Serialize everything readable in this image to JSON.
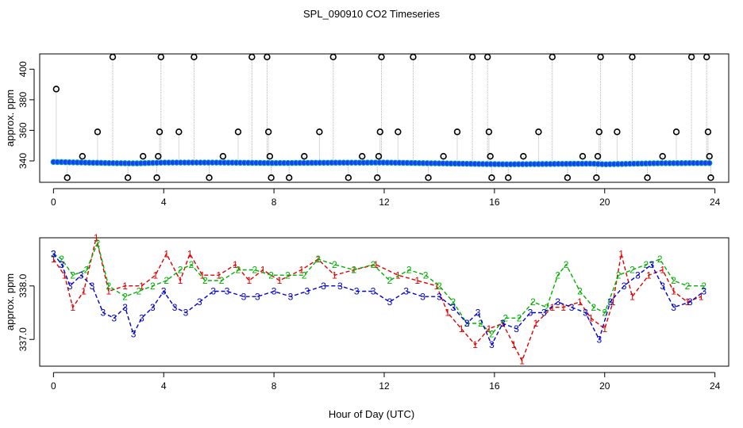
{
  "title": "SPL_090910  CO2 Timeseries",
  "xlabel": "Hour of Day (UTC)",
  "chart_data": [
    {
      "type": "scatter",
      "title": "SPL_090910  CO2 Timeseries",
      "ylabel": "approx. ppm",
      "xlim": [
        -0.5,
        24.5
      ],
      "ylim": [
        326,
        410
      ],
      "xticks": [
        0,
        4,
        8,
        12,
        16,
        20,
        24
      ],
      "xtick_labels": [
        "0",
        "4",
        "8",
        "12",
        "16",
        "20",
        "24"
      ],
      "yticks": [
        340,
        360,
        380,
        400
      ],
      "ytick_labels": [
        "340",
        "360",
        "380",
        "400"
      ],
      "baseline": [
        [
          0.0,
          339.3
        ],
        [
          2.0,
          338.6
        ],
        [
          3.0,
          338.4
        ],
        [
          4.0,
          338.9
        ],
        [
          6.0,
          338.9
        ],
        [
          8.0,
          338.6
        ],
        [
          10.0,
          338.8
        ],
        [
          12.0,
          338.9
        ],
        [
          14.0,
          338.4
        ],
        [
          15.5,
          338.0
        ],
        [
          16.5,
          337.8
        ],
        [
          18.0,
          338.0
        ],
        [
          19.5,
          338.2
        ],
        [
          20.0,
          337.8
        ],
        [
          22.0,
          338.5
        ],
        [
          23.8,
          338.6
        ]
      ],
      "outliers": [
        {
          "x": 0.1,
          "y": 387
        },
        {
          "x": 0.5,
          "y": 329
        },
        {
          "x": 1.05,
          "y": 343
        },
        {
          "x": 1.6,
          "y": 359
        },
        {
          "x": 2.15,
          "y": 408
        },
        {
          "x": 2.7,
          "y": 329
        },
        {
          "x": 3.25,
          "y": 343
        },
        {
          "x": 3.75,
          "y": 329
        },
        {
          "x": 3.8,
          "y": 343
        },
        {
          "x": 3.85,
          "y": 359
        },
        {
          "x": 3.9,
          "y": 408
        },
        {
          "x": 4.55,
          "y": 359
        },
        {
          "x": 5.1,
          "y": 408
        },
        {
          "x": 5.65,
          "y": 329
        },
        {
          "x": 6.15,
          "y": 343
        },
        {
          "x": 6.7,
          "y": 359
        },
        {
          "x": 7.2,
          "y": 408
        },
        {
          "x": 7.75,
          "y": 408
        },
        {
          "x": 7.8,
          "y": 359
        },
        {
          "x": 7.85,
          "y": 343
        },
        {
          "x": 7.9,
          "y": 329
        },
        {
          "x": 8.55,
          "y": 329
        },
        {
          "x": 9.1,
          "y": 343
        },
        {
          "x": 9.65,
          "y": 359
        },
        {
          "x": 10.15,
          "y": 408
        },
        {
          "x": 10.7,
          "y": 329
        },
        {
          "x": 11.2,
          "y": 343
        },
        {
          "x": 11.75,
          "y": 329
        },
        {
          "x": 11.8,
          "y": 343
        },
        {
          "x": 11.85,
          "y": 359
        },
        {
          "x": 11.9,
          "y": 408
        },
        {
          "x": 12.5,
          "y": 359
        },
        {
          "x": 13.05,
          "y": 408
        },
        {
          "x": 13.6,
          "y": 329
        },
        {
          "x": 14.15,
          "y": 343
        },
        {
          "x": 14.65,
          "y": 359
        },
        {
          "x": 15.2,
          "y": 408
        },
        {
          "x": 15.75,
          "y": 408
        },
        {
          "x": 15.8,
          "y": 359
        },
        {
          "x": 15.85,
          "y": 343
        },
        {
          "x": 15.9,
          "y": 329
        },
        {
          "x": 16.5,
          "y": 329
        },
        {
          "x": 17.05,
          "y": 343
        },
        {
          "x": 17.6,
          "y": 359
        },
        {
          "x": 18.1,
          "y": 408
        },
        {
          "x": 18.65,
          "y": 329
        },
        {
          "x": 19.2,
          "y": 343
        },
        {
          "x": 19.7,
          "y": 329
        },
        {
          "x": 19.75,
          "y": 343
        },
        {
          "x": 19.8,
          "y": 359
        },
        {
          "x": 19.85,
          "y": 408
        },
        {
          "x": 20.45,
          "y": 359
        },
        {
          "x": 21.0,
          "y": 408
        },
        {
          "x": 21.55,
          "y": 329
        },
        {
          "x": 22.1,
          "y": 343
        },
        {
          "x": 22.6,
          "y": 359
        },
        {
          "x": 23.15,
          "y": 408
        },
        {
          "x": 23.7,
          "y": 408
        },
        {
          "x": 23.75,
          "y": 359
        },
        {
          "x": 23.8,
          "y": 343
        },
        {
          "x": 23.85,
          "y": 329
        }
      ],
      "colors": {
        "outlier_marker": "#000000",
        "point_fill": "#1a3cff",
        "point_edge": "#00a6a6",
        "drop_line": "#b0b0b0"
      }
    },
    {
      "type": "line",
      "ylabel": "approx. ppm",
      "xlim": [
        -0.5,
        24.5
      ],
      "ylim": [
        336.5,
        338.9
      ],
      "xticks": [
        0,
        4,
        8,
        12,
        16,
        20,
        24
      ],
      "xtick_labels": [
        "0",
        "4",
        "8",
        "12",
        "16",
        "20",
        "24"
      ],
      "yticks": [
        337.0,
        338.0
      ],
      "ytick_labels": [
        "337.0",
        "338.0"
      ],
      "series": [
        {
          "name": "1",
          "color": "#e00000",
          "points": [
            [
              0.0,
              338.5
            ],
            [
              0.4,
              338.2
            ],
            [
              0.7,
              337.6
            ],
            [
              1.1,
              337.9
            ],
            [
              1.55,
              338.9
            ],
            [
              2.0,
              337.9
            ],
            [
              2.6,
              338.0
            ],
            [
              3.2,
              338.0
            ],
            [
              3.7,
              338.2
            ],
            [
              4.1,
              338.6
            ],
            [
              4.6,
              338.1
            ],
            [
              4.95,
              338.6
            ],
            [
              5.4,
              338.2
            ],
            [
              6.0,
              338.2
            ],
            [
              6.6,
              338.4
            ],
            [
              7.1,
              338.1
            ],
            [
              7.6,
              338.3
            ],
            [
              8.2,
              338.1
            ],
            [
              9.0,
              338.3
            ],
            [
              9.6,
              338.5
            ],
            [
              10.2,
              338.2
            ],
            [
              10.9,
              338.3
            ],
            [
              11.7,
              338.4
            ],
            [
              12.5,
              338.2
            ],
            [
              13.2,
              338.1
            ],
            [
              13.9,
              338.0
            ],
            [
              14.3,
              337.5
            ],
            [
              14.8,
              337.2
            ],
            [
              15.3,
              336.9
            ],
            [
              15.8,
              337.2
            ],
            [
              16.3,
              337.3
            ],
            [
              16.7,
              336.9
            ],
            [
              17.0,
              336.6
            ],
            [
              17.5,
              337.3
            ],
            [
              18.1,
              337.6
            ],
            [
              18.5,
              337.6
            ],
            [
              19.1,
              337.7
            ],
            [
              19.5,
              337.4
            ],
            [
              20.0,
              337.2
            ],
            [
              20.3,
              337.7
            ],
            [
              20.6,
              338.6
            ],
            [
              21.0,
              337.8
            ],
            [
              21.6,
              338.2
            ],
            [
              22.1,
              338.3
            ],
            [
              22.5,
              337.9
            ],
            [
              23.0,
              337.7
            ],
            [
              23.5,
              337.8
            ]
          ]
        },
        {
          "name": "2",
          "color": "#00b000",
          "points": [
            [
              0.0,
              338.6
            ],
            [
              0.3,
              338.5
            ],
            [
              0.7,
              338.2
            ],
            [
              1.2,
              338.3
            ],
            [
              1.6,
              338.8
            ],
            [
              2.0,
              338.0
            ],
            [
              2.6,
              337.8
            ],
            [
              3.1,
              337.9
            ],
            [
              3.6,
              338.0
            ],
            [
              4.1,
              338.1
            ],
            [
              4.6,
              338.3
            ],
            [
              5.0,
              338.4
            ],
            [
              5.5,
              338.1
            ],
            [
              6.1,
              338.1
            ],
            [
              6.7,
              338.3
            ],
            [
              7.3,
              338.3
            ],
            [
              7.9,
              338.2
            ],
            [
              8.5,
              338.2
            ],
            [
              9.1,
              338.2
            ],
            [
              9.6,
              338.5
            ],
            [
              10.2,
              338.4
            ],
            [
              10.9,
              338.3
            ],
            [
              11.6,
              338.4
            ],
            [
              12.2,
              338.1
            ],
            [
              12.9,
              338.3
            ],
            [
              13.5,
              338.2
            ],
            [
              14.0,
              338.0
            ],
            [
              14.5,
              337.7
            ],
            [
              15.0,
              337.3
            ],
            [
              15.5,
              337.3
            ],
            [
              15.9,
              337.1
            ],
            [
              16.4,
              337.4
            ],
            [
              16.9,
              337.4
            ],
            [
              17.4,
              337.7
            ],
            [
              17.9,
              337.6
            ],
            [
              18.3,
              338.2
            ],
            [
              18.6,
              338.4
            ],
            [
              19.1,
              337.9
            ],
            [
              19.6,
              337.6
            ],
            [
              20.0,
              337.5
            ],
            [
              20.5,
              338.2
            ],
            [
              21.0,
              338.3
            ],
            [
              21.5,
              338.4
            ],
            [
              22.0,
              338.5
            ],
            [
              22.5,
              338.1
            ],
            [
              23.0,
              338.0
            ],
            [
              23.6,
              338.0
            ]
          ]
        },
        {
          "name": "3",
          "color": "#0000d0",
          "points": [
            [
              0.0,
              338.6
            ],
            [
              0.3,
              338.4
            ],
            [
              0.6,
              338.0
            ],
            [
              1.0,
              338.2
            ],
            [
              1.4,
              338.0
            ],
            [
              1.8,
              337.5
            ],
            [
              2.2,
              337.4
            ],
            [
              2.6,
              337.6
            ],
            [
              2.9,
              337.1
            ],
            [
              3.2,
              337.4
            ],
            [
              3.6,
              337.6
            ],
            [
              4.0,
              337.9
            ],
            [
              4.4,
              337.6
            ],
            [
              4.8,
              337.5
            ],
            [
              5.3,
              337.7
            ],
            [
              5.8,
              337.9
            ],
            [
              6.3,
              337.9
            ],
            [
              6.9,
              337.8
            ],
            [
              7.4,
              337.8
            ],
            [
              8.0,
              337.9
            ],
            [
              8.6,
              337.8
            ],
            [
              9.2,
              337.9
            ],
            [
              9.8,
              338.0
            ],
            [
              10.4,
              338.0
            ],
            [
              11.0,
              337.9
            ],
            [
              11.6,
              337.9
            ],
            [
              12.2,
              337.7
            ],
            [
              12.8,
              337.9
            ],
            [
              13.4,
              337.8
            ],
            [
              14.0,
              337.8
            ],
            [
              14.5,
              337.6
            ],
            [
              15.0,
              337.3
            ],
            [
              15.4,
              337.5
            ],
            [
              15.9,
              336.9
            ],
            [
              16.3,
              337.3
            ],
            [
              16.8,
              337.2
            ],
            [
              17.3,
              337.5
            ],
            [
              17.8,
              337.5
            ],
            [
              18.3,
              337.7
            ],
            [
              18.8,
              337.6
            ],
            [
              19.3,
              337.5
            ],
            [
              19.8,
              337.0
            ],
            [
              20.2,
              337.7
            ],
            [
              20.7,
              338.0
            ],
            [
              21.2,
              338.2
            ],
            [
              21.7,
              338.4
            ],
            [
              22.1,
              338.0
            ],
            [
              22.5,
              337.6
            ],
            [
              23.1,
              337.7
            ],
            [
              23.6,
              337.9
            ]
          ]
        }
      ]
    }
  ]
}
